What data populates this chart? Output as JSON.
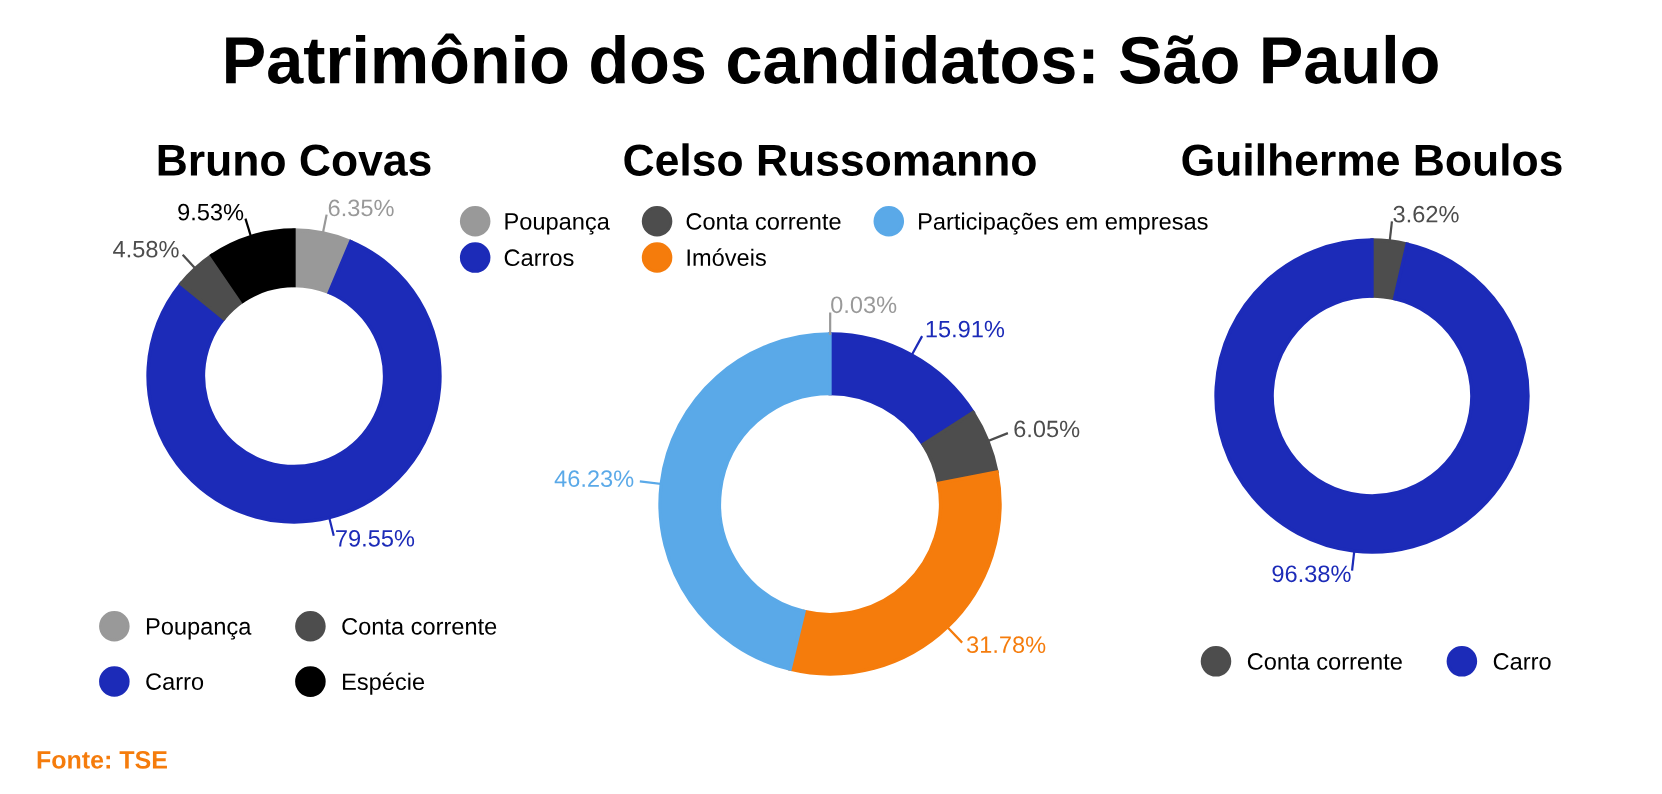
{
  "chart_data": [
    {
      "type": "donut",
      "title": "Bruno Covas",
      "categories": [
        "Poupança",
        "Carro",
        "Conta corrente",
        "Espécie"
      ],
      "values": [
        6.35,
        79.55,
        4.58,
        9.53
      ],
      "colors": [
        "#999999",
        "#1c2bb8",
        "#4d4d4d",
        "#000000"
      ],
      "value_labels": [
        "6.35%",
        "79.55%",
        "4.58%",
        "9.53%"
      ],
      "legend": "bottom",
      "annotations": [
        "Patrimônio dos candidatos: São Paulo",
        "Fonte: TSE"
      ]
    },
    {
      "type": "donut",
      "title": "Celso Russomanno",
      "categories": [
        "Poupança",
        "Carros",
        "Conta corrente",
        "Imóveis",
        "Participações em empresas"
      ],
      "values": [
        0.03,
        15.91,
        6.05,
        31.78,
        46.23
      ],
      "colors": [
        "#999999",
        "#1c2bb8",
        "#4d4d4d",
        "#f57c0c",
        "#5aa9e8"
      ],
      "value_labels": [
        "0.03%",
        "15.91%",
        "6.05%",
        "31.78%",
        "46.23%"
      ],
      "legend": "top"
    },
    {
      "type": "donut",
      "title": "Guilherme Boulos",
      "categories": [
        "Conta corrente",
        "Carro"
      ],
      "values": [
        3.62,
        96.38
      ],
      "colors": [
        "#4d4d4d",
        "#1c2bb8"
      ],
      "value_labels": [
        "3.62%",
        "96.38%"
      ],
      "legend": "bottom"
    }
  ]
}
